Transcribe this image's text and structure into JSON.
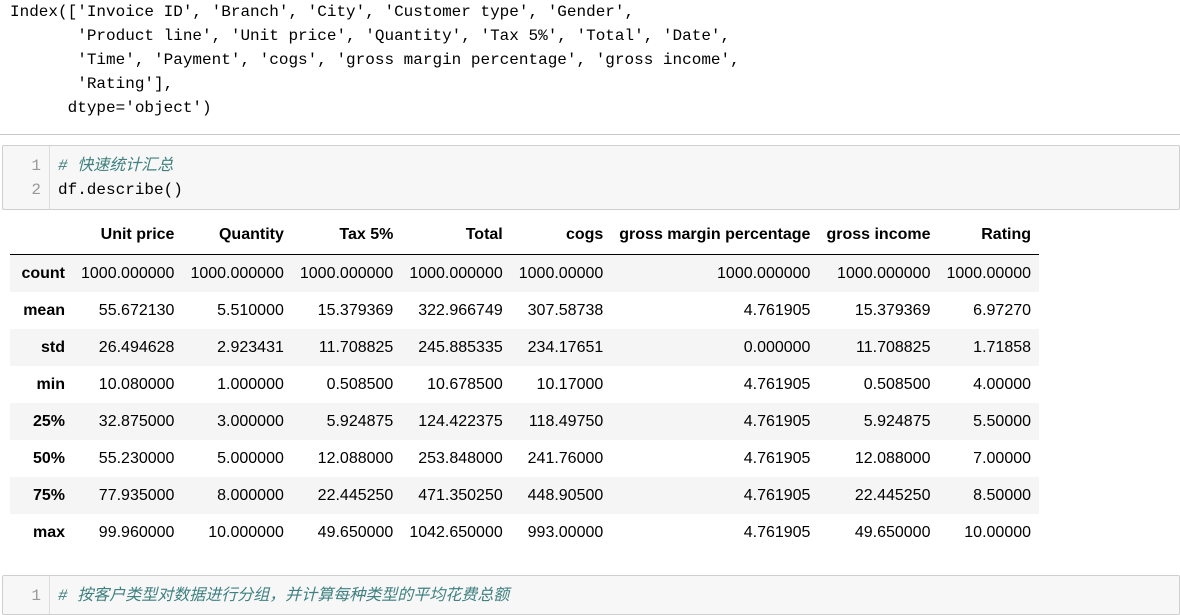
{
  "output_index": "Index(['Invoice ID', 'Branch', 'City', 'Customer type', 'Gender',\n       'Product line', 'Unit price', 'Quantity', 'Tax 5%', 'Total', 'Date',\n       'Time', 'Payment', 'cogs', 'gross margin percentage', 'gross income',\n       'Rating'],\n      dtype='object')",
  "cell1": {
    "line_numbers": [
      "1",
      "2"
    ],
    "comment": "# 快速统计汇总",
    "code": "df.describe()"
  },
  "table": {
    "columns": [
      "",
      "Unit price",
      "Quantity",
      "Tax 5%",
      "Total",
      "cogs",
      "gross margin percentage",
      "gross income",
      "Rating"
    ],
    "rows": [
      {
        "label": "count",
        "values": [
          "1000.000000",
          "1000.000000",
          "1000.000000",
          "1000.000000",
          "1000.00000",
          "1000.000000",
          "1000.000000",
          "1000.00000"
        ]
      },
      {
        "label": "mean",
        "values": [
          "55.672130",
          "5.510000",
          "15.379369",
          "322.966749",
          "307.58738",
          "4.761905",
          "15.379369",
          "6.97270"
        ]
      },
      {
        "label": "std",
        "values": [
          "26.494628",
          "2.923431",
          "11.708825",
          "245.885335",
          "234.17651",
          "0.000000",
          "11.708825",
          "1.71858"
        ]
      },
      {
        "label": "min",
        "values": [
          "10.080000",
          "1.000000",
          "0.508500",
          "10.678500",
          "10.17000",
          "4.761905",
          "0.508500",
          "4.00000"
        ]
      },
      {
        "label": "25%",
        "values": [
          "32.875000",
          "3.000000",
          "5.924875",
          "124.422375",
          "118.49750",
          "4.761905",
          "5.924875",
          "5.50000"
        ]
      },
      {
        "label": "50%",
        "values": [
          "55.230000",
          "5.000000",
          "12.088000",
          "253.848000",
          "241.76000",
          "4.761905",
          "12.088000",
          "7.00000"
        ]
      },
      {
        "label": "75%",
        "values": [
          "77.935000",
          "8.000000",
          "22.445250",
          "471.350250",
          "448.90500",
          "4.761905",
          "22.445250",
          "8.50000"
        ]
      },
      {
        "label": "max",
        "values": [
          "99.960000",
          "10.000000",
          "49.650000",
          "1042.650000",
          "993.00000",
          "4.761905",
          "49.650000",
          "10.00000"
        ]
      }
    ]
  },
  "cell2": {
    "line_numbers": [
      "1"
    ],
    "comment": "# 按客户类型对数据进行分组，并计算每种类型的平均花费总额"
  }
}
